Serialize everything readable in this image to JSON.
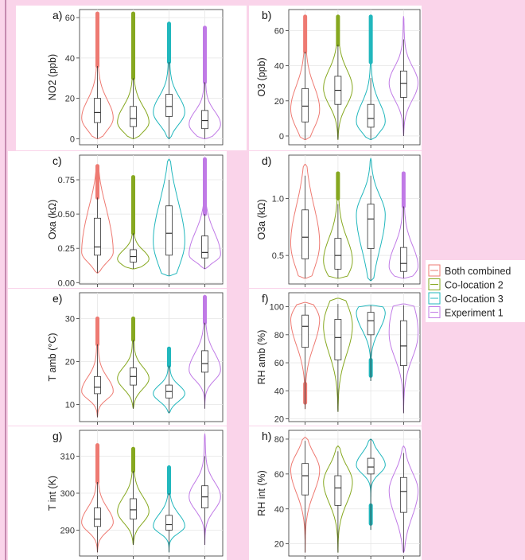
{
  "colors": {
    "Both combined": "#ee7a72",
    "Co-location 2": "#86a81f",
    "Co-location 3": "#21b7bd",
    "Experiment 1": "#c07ae6"
  },
  "legend": {
    "entries": [
      "Both combined",
      "Co-location 2",
      "Co-location 3",
      "Experiment 1"
    ],
    "placement": "right"
  },
  "chart_data": [
    {
      "type": "violin",
      "panel": "a)",
      "ylabel": "NO2 (ppb)",
      "ylim": [
        -3,
        64
      ],
      "yticks": [
        0,
        20,
        40,
        60
      ],
      "grid": true,
      "categories": [
        "Both combined",
        "Co-location 2",
        "Co-location 3",
        "Experiment 1"
      ],
      "series": [
        {
          "name": "Both combined",
          "min": 0,
          "q1": 8,
          "median": 13,
          "q3": 20,
          "whisker_hi": 36,
          "max": 62,
          "outliers_from": 36,
          "mode": 10
        },
        {
          "name": "Co-location 2",
          "min": 0,
          "q1": 6,
          "median": 10,
          "q3": 16,
          "whisker_hi": 30,
          "max": 62,
          "outliers_from": 30,
          "mode": 8
        },
        {
          "name": "Co-location 3",
          "min": 0,
          "q1": 11,
          "median": 16,
          "q3": 22,
          "whisker_hi": 38,
          "max": 57,
          "outliers_from": 38,
          "mode": 13
        },
        {
          "name": "Experiment 1",
          "min": 0,
          "q1": 5,
          "median": 9,
          "q3": 14,
          "whisker_hi": 28,
          "max": 55,
          "outliers_from": 28,
          "mode": 7
        }
      ]
    },
    {
      "type": "violin",
      "panel": "b)",
      "ylabel": "O3 (ppb)",
      "ylim": [
        -5,
        72
      ],
      "yticks": [
        0,
        20,
        40,
        60
      ],
      "grid": true,
      "categories": [
        "Both combined",
        "Co-location 2",
        "Co-location 3",
        "Experiment 1"
      ],
      "series": [
        {
          "name": "Both combined",
          "min": -2,
          "q1": 8,
          "median": 17,
          "q3": 27,
          "whisker_hi": 48,
          "max": 68,
          "outliers_from": 48,
          "mode": 15
        },
        {
          "name": "Co-location 2",
          "min": -2,
          "q1": 18,
          "median": 26,
          "q3": 34,
          "whisker_hi": 52,
          "max": 68,
          "outliers_from": 52,
          "mode": 27
        },
        {
          "name": "Co-location 3",
          "min": -2,
          "q1": 5,
          "median": 10,
          "q3": 18,
          "whisker_hi": 33,
          "max": 68,
          "outliers_from": 42,
          "mode": 8
        },
        {
          "name": "Experiment 1",
          "min": 0,
          "q1": 22,
          "median": 30,
          "q3": 37,
          "whisker_hi": 55,
          "max": 68,
          "outliers_from": null,
          "mode": 30
        }
      ]
    },
    {
      "type": "violin",
      "panel": "c)",
      "ylabel": "Oxa (kΩ)",
      "ylim": [
        -0.01,
        0.93
      ],
      "yticks": [
        0.0,
        0.25,
        0.5,
        0.75
      ],
      "tick_labels": [
        "0.00",
        "0.25",
        "0.50",
        "0.75"
      ],
      "grid": true,
      "categories": [
        "Both combined",
        "Co-location 2",
        "Co-location 3",
        "Experiment 1"
      ],
      "series": [
        {
          "name": "Both combined",
          "min": 0.07,
          "q1": 0.2,
          "median": 0.26,
          "q3": 0.47,
          "whisker_hi": 0.62,
          "max": 0.85,
          "outliers_from": 0.62,
          "mode": 0.22
        },
        {
          "name": "Co-location 2",
          "min": 0.1,
          "q1": 0.15,
          "median": 0.19,
          "q3": 0.24,
          "whisker_hi": 0.36,
          "max": 0.77,
          "outliers_from": 0.36,
          "mode": 0.17
        },
        {
          "name": "Co-location 3",
          "min": 0.05,
          "q1": 0.2,
          "median": 0.36,
          "q3": 0.56,
          "whisker_hi": 0.75,
          "max": 0.9,
          "outliers_from": null,
          "mode": 0.3
        },
        {
          "name": "Experiment 1",
          "min": 0.1,
          "q1": 0.18,
          "median": 0.22,
          "q3": 0.34,
          "whisker_hi": 0.5,
          "max": 0.9,
          "outliers_from": 0.5,
          "mode": 0.2
        }
      ]
    },
    {
      "type": "violin",
      "panel": "d)",
      "ylabel": "O3a (kΩ)",
      "ylim": [
        0.25,
        1.38
      ],
      "yticks": [
        0.5,
        1.0
      ],
      "tick_labels": [
        "0.5",
        "1.0"
      ],
      "grid": true,
      "categories": [
        "Both combined",
        "Co-location 2",
        "Co-location 3",
        "Experiment 1"
      ],
      "series": [
        {
          "name": "Both combined",
          "min": 0.3,
          "q1": 0.47,
          "median": 0.66,
          "q3": 0.9,
          "whisker_hi": 1.2,
          "max": 1.3,
          "outliers_from": null,
          "mode": 0.6
        },
        {
          "name": "Co-location 2",
          "min": 0.3,
          "q1": 0.38,
          "median": 0.5,
          "q3": 0.65,
          "whisker_hi": 0.95,
          "max": 1.22,
          "outliers_from": 1.0,
          "mode": 0.45
        },
        {
          "name": "Co-location 3",
          "min": 0.28,
          "q1": 0.56,
          "median": 0.82,
          "q3": 0.95,
          "whisker_hi": 1.2,
          "max": 1.35,
          "outliers_from": null,
          "mode": 0.85
        },
        {
          "name": "Experiment 1",
          "min": 0.3,
          "q1": 0.36,
          "median": 0.43,
          "q3": 0.57,
          "whisker_hi": 0.93,
          "max": 1.22,
          "outliers_from": 0.93,
          "mode": 0.4
        }
      ]
    },
    {
      "type": "violin",
      "panel": "e)",
      "ylabel": "T amb (°C)",
      "ylim": [
        6,
        36
      ],
      "yticks": [
        10,
        20,
        30
      ],
      "grid": true,
      "categories": [
        "Both combined",
        "Co-location 2",
        "Co-location 3",
        "Experiment 1"
      ],
      "series": [
        {
          "name": "Both combined",
          "min": 7,
          "q1": 12.5,
          "median": 14,
          "q3": 16.5,
          "whisker_hi": 24,
          "max": 30,
          "outliers_from": 24,
          "mode": 13
        },
        {
          "name": "Co-location 2",
          "min": 9,
          "q1": 14.5,
          "median": 16.5,
          "q3": 18.5,
          "whisker_hi": 25,
          "max": 30,
          "outliers_from": 25,
          "mode": 16
        },
        {
          "name": "Co-location 3",
          "min": 8,
          "q1": 11.5,
          "median": 13,
          "q3": 14.5,
          "whisker_hi": 19,
          "max": 23,
          "outliers_from": 19,
          "mode": 12.5
        },
        {
          "name": "Experiment 1",
          "min": 9,
          "q1": 17.5,
          "median": 19.5,
          "q3": 22.5,
          "whisker_hi": 29,
          "max": 35,
          "outliers_from": 29,
          "mode": 18
        }
      ]
    },
    {
      "type": "violin",
      "panel": "f)",
      "ylabel": "RH amb (%)",
      "ylim": [
        18,
        110
      ],
      "yticks": [
        20,
        40,
        60,
        80,
        100
      ],
      "grid": true,
      "categories": [
        "Both combined",
        "Co-location 2",
        "Co-location 3",
        "Experiment 1"
      ],
      "series": [
        {
          "name": "Both combined",
          "min": 27,
          "q1": 71,
          "median": 86,
          "q3": 94,
          "whisker_hi": 102,
          "max": 103,
          "outliers_from": null,
          "lo_outliers_to": 45,
          "mode": 90
        },
        {
          "name": "Co-location 2",
          "min": 25,
          "q1": 62,
          "median": 78,
          "q3": 91,
          "whisker_hi": 102,
          "max": 106,
          "outliers_from": null,
          "mode": 85
        },
        {
          "name": "Co-location 3",
          "min": 47,
          "q1": 80,
          "median": 90,
          "q3": 96,
          "whisker_hi": 101,
          "max": 101,
          "outliers_from": null,
          "lo_outliers_to": 62,
          "mode": 95
        },
        {
          "name": "Experiment 1",
          "min": 24,
          "q1": 58,
          "median": 72,
          "q3": 90,
          "whisker_hi": 101,
          "max": 102,
          "outliers_from": null,
          "mode": 80
        }
      ]
    },
    {
      "type": "violin",
      "panel": "g)",
      "ylabel": "T int (K)",
      "ylim": [
        283,
        317
      ],
      "yticks": [
        290,
        300,
        310
      ],
      "grid": true,
      "categories": [
        "Both combined",
        "Co-location 2",
        "Co-location 3",
        "Experiment 1"
      ],
      "series": [
        {
          "name": "Both combined",
          "min": 284,
          "q1": 291,
          "median": 293,
          "q3": 296,
          "whisker_hi": 303,
          "max": 313,
          "outliers_from": 303,
          "mode": 292
        },
        {
          "name": "Co-location 2",
          "min": 286,
          "q1": 293,
          "median": 295.5,
          "q3": 298.5,
          "whisker_hi": 306,
          "max": 312,
          "outliers_from": 306,
          "mode": 295
        },
        {
          "name": "Co-location 3",
          "min": 284,
          "q1": 290,
          "median": 291.5,
          "q3": 294,
          "whisker_hi": 300,
          "max": 307,
          "outliers_from": 300,
          "mode": 291
        },
        {
          "name": "Experiment 1",
          "min": 286,
          "q1": 296,
          "median": 299,
          "q3": 302,
          "whisker_hi": 310,
          "max": 316,
          "outliers_from": null,
          "mode": 299
        }
      ]
    },
    {
      "type": "violin",
      "panel": "h)",
      "ylabel": "RH int (%)",
      "ylim": [
        13,
        85
      ],
      "yticks": [
        20,
        40,
        60,
        80
      ],
      "grid": true,
      "categories": [
        "Both combined",
        "Co-location 2",
        "Co-location 3",
        "Experiment 1"
      ],
      "series": [
        {
          "name": "Both combined",
          "min": 15,
          "q1": 48,
          "median": 59,
          "q3": 66,
          "whisker_hi": 79,
          "max": 81,
          "outliers_from": null,
          "mode": 62
        },
        {
          "name": "Co-location 2",
          "min": 15,
          "q1": 42,
          "median": 52,
          "q3": 59,
          "whisker_hi": 73,
          "max": 76,
          "outliers_from": null,
          "mode": 55
        },
        {
          "name": "Co-location 3",
          "min": 28,
          "q1": 60,
          "median": 64,
          "q3": 69,
          "whisker_hi": 80,
          "max": 80,
          "outliers_from": null,
          "lo_outliers_to": 42,
          "mode": 65
        },
        {
          "name": "Experiment 1",
          "min": 15,
          "q1": 38,
          "median": 50,
          "q3": 58,
          "whisker_hi": 72,
          "max": 76,
          "outliers_from": null,
          "mode": 50
        }
      ]
    }
  ]
}
